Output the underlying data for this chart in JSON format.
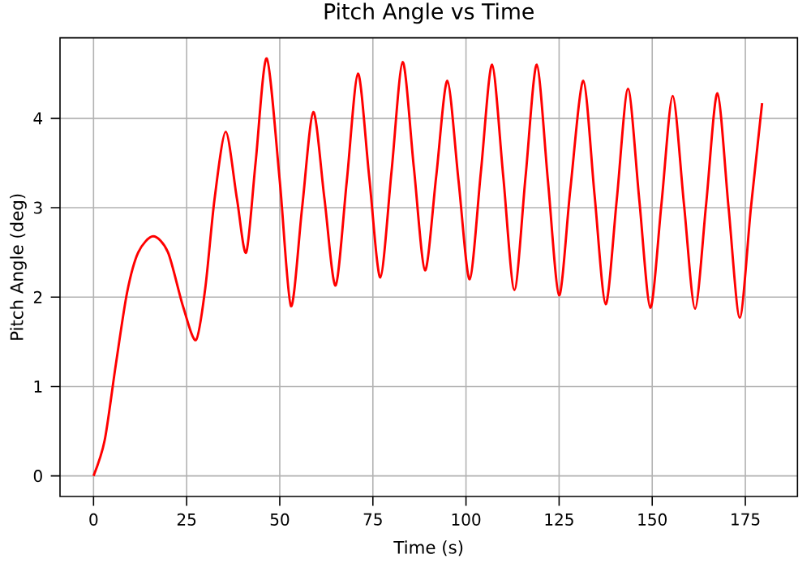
{
  "chart_data": {
    "type": "line",
    "title": "Pitch Angle vs Time",
    "xlabel": "Time (s)",
    "ylabel": "Pitch Angle (deg)",
    "x": [
      0,
      3,
      6,
      9,
      12,
      16,
      20,
      24,
      27.5,
      30,
      32.5,
      35.5,
      38.5,
      41,
      43.5,
      46.5,
      50,
      53,
      56,
      59,
      62,
      65,
      68,
      71,
      74,
      77,
      80,
      83,
      86,
      89,
      92,
      95,
      98,
      101,
      104,
      107,
      110,
      113,
      116,
      119,
      122,
      125,
      128,
      131.5,
      134.5,
      137.5,
      140.5,
      143.5,
      146.5,
      149.5,
      152.5,
      155.5,
      158.5,
      161.5,
      164.5,
      167.5,
      170.5,
      173.5,
      176.5,
      179.5
    ],
    "series": [
      {
        "color": "#ff0000",
        "values": [
          0,
          0.4,
          1.25,
          2.05,
          2.5,
          2.68,
          2.5,
          1.9,
          1.52,
          2.1,
          3.1,
          3.85,
          3.1,
          2.5,
          3.5,
          4.67,
          3.3,
          1.9,
          3.0,
          4.07,
          3.1,
          2.13,
          3.3,
          4.5,
          3.35,
          2.22,
          3.4,
          4.63,
          3.45,
          2.3,
          3.35,
          4.42,
          3.3,
          2.2,
          3.4,
          4.6,
          3.35,
          2.08,
          3.35,
          4.6,
          3.3,
          2.02,
          3.2,
          4.42,
          3.15,
          1.92,
          3.1,
          4.33,
          3.1,
          1.88,
          3.05,
          4.25,
          3.05,
          1.87,
          3.05,
          4.28,
          3.0,
          1.77,
          3.0,
          4.17
        ]
      }
    ],
    "xlim": [
      -9,
      189
    ],
    "ylim": [
      -0.23,
      4.9
    ],
    "xticks": [
      0,
      25,
      50,
      75,
      100,
      125,
      150,
      175
    ],
    "yticks": [
      0,
      1,
      2,
      3,
      4
    ],
    "grid": true,
    "marker": "none",
    "line_style": "solid"
  }
}
